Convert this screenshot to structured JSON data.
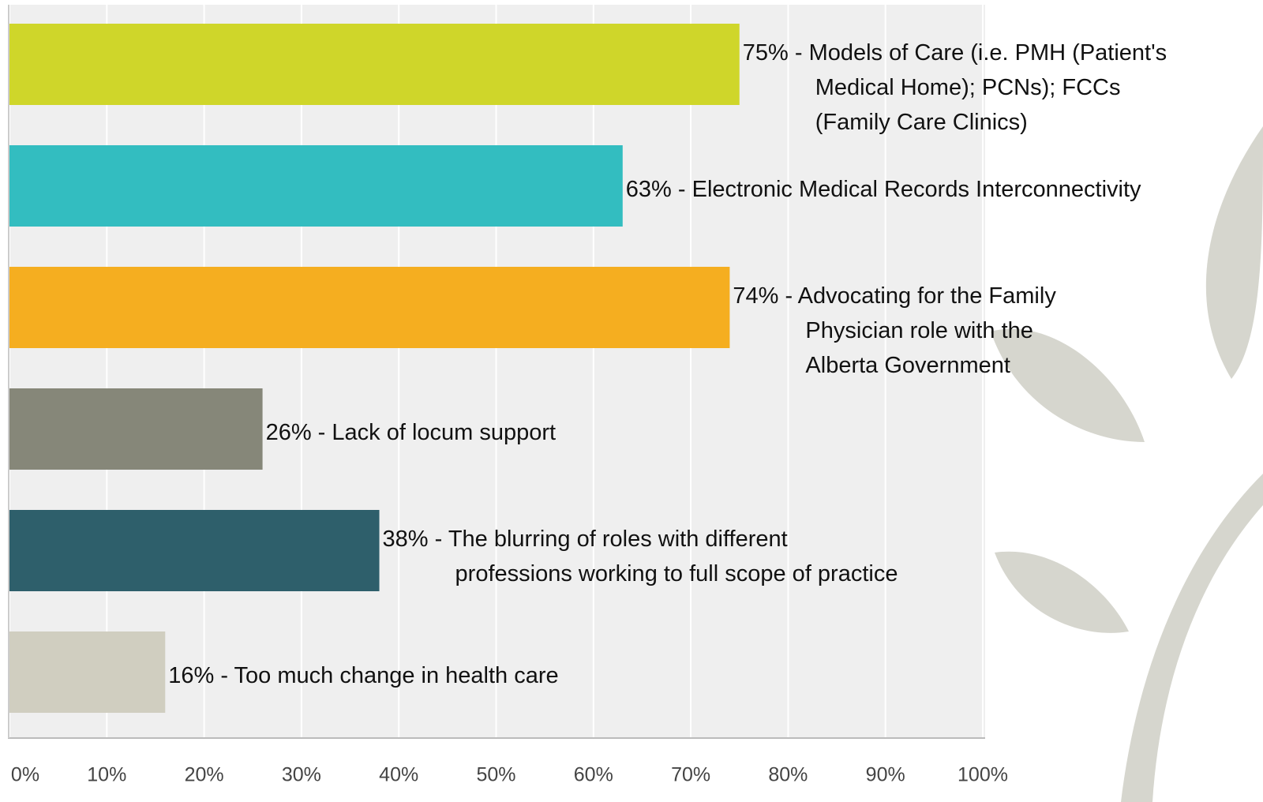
{
  "chart_data": {
    "type": "hbar",
    "values": [
      75,
      63,
      74,
      26,
      38,
      16
    ],
    "value_labels": [
      "75% - Models of Care (i.e. PMH (Patient's\nMedical Home);  PCNs); FCCs\n(Family Care Clinics)",
      "63% - Electronic Medical Records Interconnectivity",
      "74% - Advocating for the Family\nPhysician role with the\nAlberta Government",
      "26% - Lack of locum support",
      "38% - The blurring of roles with different\nprofessions working to full scope of practice",
      "16% - Too much change in health care"
    ],
    "colors": [
      "#cfd62a",
      "#33bdc0",
      "#f5ae20",
      "#868779",
      "#2e5f6b",
      "#d0cec0"
    ],
    "xlim": [
      0,
      100
    ],
    "xticks": [
      {
        "value": 0,
        "label": "0%"
      },
      {
        "value": 10,
        "label": "10%"
      },
      {
        "value": 20,
        "label": "20%"
      },
      {
        "value": 30,
        "label": "30%"
      },
      {
        "value": 40,
        "label": "40%"
      },
      {
        "value": 50,
        "label": "50%"
      },
      {
        "value": 60,
        "label": "60%"
      },
      {
        "value": 70,
        "label": "70%"
      },
      {
        "value": 80,
        "label": "80%"
      },
      {
        "value": 90,
        "label": "90%"
      },
      {
        "value": 100,
        "label": "100%"
      }
    ],
    "grid": true
  }
}
